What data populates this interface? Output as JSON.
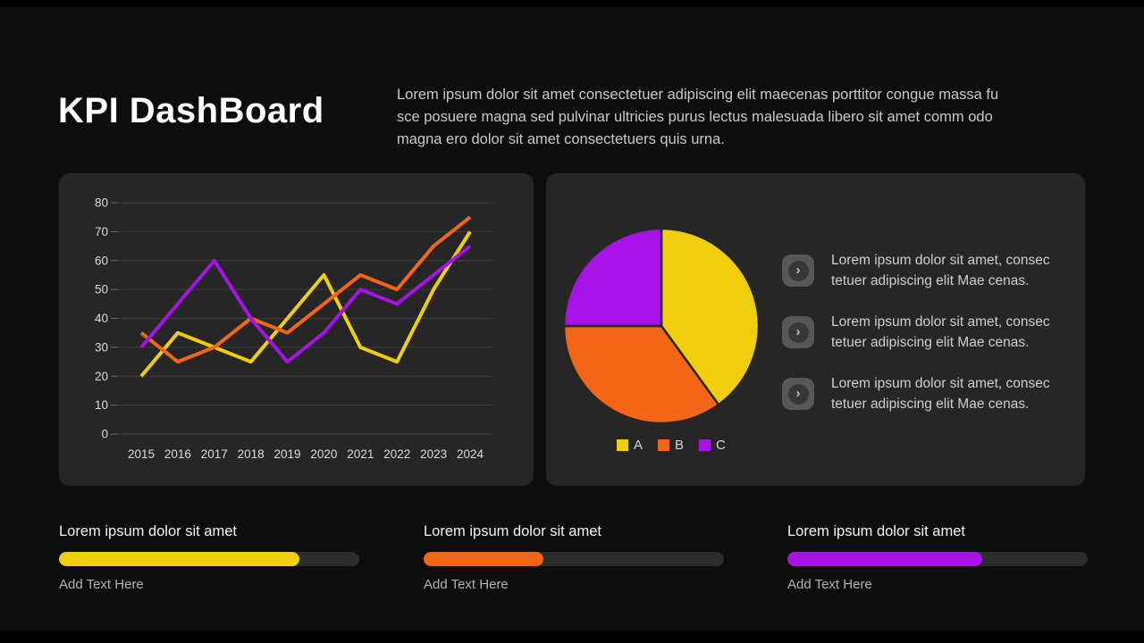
{
  "page": {
    "bg": "#0d0d0d",
    "card_bg": "#262626",
    "accent_yellow": "#EFCE0D",
    "accent_orange": "#F36617",
    "accent_purple": "#A712E6"
  },
  "header": {
    "title": "KPI DashBoard",
    "desc_lines": [
      "Lorem ipsum dolor sit amet consectetuer adipiscing elit maecenas porttitor congue massa fu",
      "sce posuere magna sed pulvinar ultricies purus lectus malesuada libero sit amet comm odo",
      "magna ero dolor sit amet consectetuers quis urna."
    ]
  },
  "chart_data": [
    {
      "type": "line",
      "title": "",
      "xlabel": "",
      "ylabel": "",
      "categories": [
        "2015",
        "2016",
        "2017",
        "2018",
        "2019",
        "2020",
        "2021",
        "2022",
        "2023",
        "2024"
      ],
      "series": [
        {
          "name": "A",
          "color": "#EFCE0D",
          "values": [
            20,
            35,
            30,
            25,
            40,
            55,
            30,
            25,
            50,
            70
          ]
        },
        {
          "name": "B",
          "color": "#F36617",
          "values": [
            35,
            25,
            30,
            40,
            35,
            45,
            55,
            50,
            65,
            75
          ]
        },
        {
          "name": "C",
          "color": "#A712E6",
          "values": [
            30,
            45,
            60,
            40,
            25,
            35,
            50,
            45,
            55,
            65
          ]
        }
      ],
      "ylim": [
        0,
        80
      ],
      "ytick_step": 10,
      "grid": true,
      "legend_position": "none"
    },
    {
      "type": "pie",
      "title": "",
      "labels": [
        "A",
        "B",
        "C"
      ],
      "values": [
        40,
        35,
        25
      ],
      "colors": [
        "#EFCE0D",
        "#F36617",
        "#A712E6"
      ],
      "start_angle": "top",
      "direction": "clockwise",
      "legend_position": "bottom"
    }
  ],
  "pie_panel": {
    "items": [
      {
        "icon": "chevron-right",
        "line1": "Lorem ipsum dolor sit amet, consec",
        "line2": "tetuer adipiscing elit Mae cenas."
      },
      {
        "icon": "chevron-right",
        "line1": "Lorem ipsum dolor sit amet, consec",
        "line2": "tetuer adipiscing elit Mae cenas."
      },
      {
        "icon": "chevron-right",
        "line1": "Lorem ipsum dolor sit amet, consec",
        "line2": "tetuer adipiscing elit Mae cenas."
      }
    ]
  },
  "progress_cards": [
    {
      "title": "Lorem ipsum dolor sit amet",
      "percent": 80,
      "color": "#EFCE0D",
      "subtitle": "Add Text Here"
    },
    {
      "title": "Lorem ipsum dolor sit amet",
      "percent": 40,
      "color": "#F36617",
      "subtitle": "Add Text Here"
    },
    {
      "title": "Lorem ipsum dolor sit amet",
      "percent": 65,
      "color": "#A712E6",
      "subtitle": "Add Text Here"
    }
  ]
}
